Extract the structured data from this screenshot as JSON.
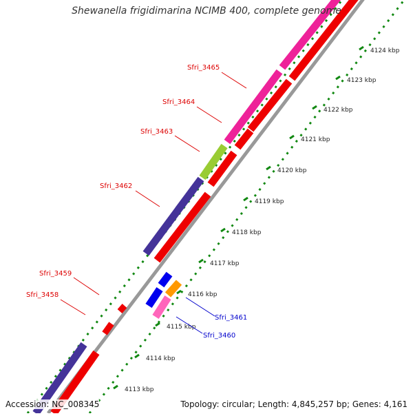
{
  "title": "Shewanella frigidimarina NCIMB 400, complete genome",
  "accession_text": "Accession: NC_008345",
  "topology_text": "Topology: circular; Length: 4,845,257 bp; Genes: 4,161",
  "colors": {
    "cds_forward": "#ee0000",
    "tick_green": "#118811",
    "backbone": "#999999",
    "pink": "#ee2299",
    "light_pink": "#ff66bb",
    "purple": "#443399",
    "lime": "#99cc33",
    "blue": "#0000ee",
    "orange": "#ff9900",
    "label_red": "#dd0000",
    "label_blue": "#0000cc"
  },
  "scale_labels": [
    "4113 kbp",
    "4114 kbp",
    "4115 kbp",
    "4116 kbp",
    "4117 kbp",
    "4118 kbp",
    "4119 kbp",
    "4120 kbp",
    "4121 kbp",
    "4122 kbp",
    "4123 kbp",
    "4124 kbp"
  ],
  "gene_labels": [
    {
      "text": "Sfri_3465",
      "color_key": "label_red"
    },
    {
      "text": "Sfri_3464",
      "color_key": "label_red"
    },
    {
      "text": "Sfri_3463",
      "color_key": "label_red"
    },
    {
      "text": "Sfri_3462",
      "color_key": "label_red"
    },
    {
      "text": "Sfri_3459",
      "color_key": "label_red"
    },
    {
      "text": "Sfri_3458",
      "color_key": "label_red"
    },
    {
      "text": "Sfri_3461",
      "color_key": "label_blue"
    },
    {
      "text": "Sfri_3460",
      "color_key": "label_blue"
    }
  ]
}
